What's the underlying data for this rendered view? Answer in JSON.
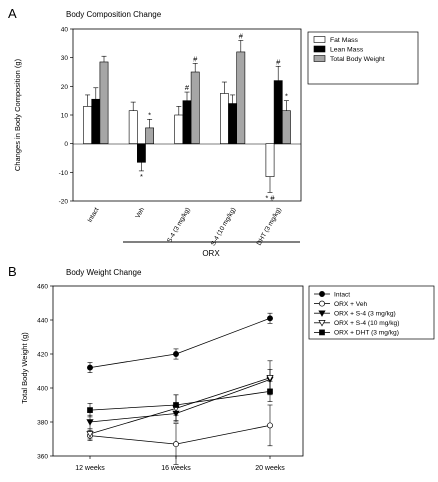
{
  "chart_data": [
    {
      "panel_letter": "A",
      "type": "bar",
      "title": "Body Composition Change",
      "ylabel": "Changes in Body Composition (g)",
      "xlabel": "",
      "ylim": [
        -20,
        40
      ],
      "yticks": [
        -20,
        -10,
        0,
        10,
        20,
        30,
        40
      ],
      "grid": false,
      "legend_position": "top-right",
      "bracket_label": "ORX",
      "categories": [
        "Intact",
        "Veh",
        "S-4 (3 mg/kg)",
        "S-4 (10 mg/kg)",
        "DHT (3 mg/kg)"
      ],
      "series": [
        {
          "name": "Fat Mass",
          "color": "#ffffff",
          "values": [
            13,
            11.5,
            10,
            17.5,
            -11.5
          ],
          "errors": [
            4,
            3,
            3,
            4,
            5.5
          ]
        },
        {
          "name": "Lean Mass",
          "color": "#000000",
          "values": [
            15.5,
            -6.5,
            15,
            14,
            22
          ],
          "errors": [
            4,
            3,
            3,
            3,
            5
          ]
        },
        {
          "name": "Total Body Weight",
          "color": "#a6a6a6",
          "values": [
            28.5,
            5.5,
            25,
            32,
            11.5
          ],
          "errors": [
            2,
            3,
            3,
            4,
            3.5
          ]
        }
      ],
      "annotations": [
        {
          "category": 1,
          "series": 1,
          "text": "*"
        },
        {
          "category": 1,
          "series": 2,
          "text": "*"
        },
        {
          "category": 2,
          "series": 1,
          "text": "#"
        },
        {
          "category": 2,
          "series": 2,
          "text": "#"
        },
        {
          "category": 3,
          "series": 2,
          "text": "#"
        },
        {
          "category": 4,
          "series": 0,
          "text": "* #"
        },
        {
          "category": 4,
          "series": 1,
          "text": "#"
        },
        {
          "category": 4,
          "series": 2,
          "text": "*"
        }
      ]
    },
    {
      "panel_letter": "B",
      "type": "line",
      "title": "Body Weight Change",
      "ylabel": "Total Body Weight (g)",
      "xlabel": "",
      "ylim": [
        360,
        460
      ],
      "yticks": [
        360,
        380,
        400,
        420,
        440,
        460
      ],
      "grid": false,
      "legend_position": "top-right",
      "categories": [
        "12 weeks",
        "16 weeks",
        "20 weeks"
      ],
      "series": [
        {
          "name": "Intact",
          "marker": "circle-filled",
          "values": [
            412,
            420,
            441
          ],
          "errors": [
            3,
            3,
            3
          ]
        },
        {
          "name": "ORX + Veh",
          "marker": "circle-open",
          "values": [
            372,
            367,
            378
          ],
          "errors": [
            3,
            12,
            12
          ]
        },
        {
          "name": "ORX + S-4 (3 mg/kg)",
          "marker": "triangle-down-filled",
          "values": [
            380,
            385,
            405
          ],
          "errors": [
            4,
            4,
            6
          ]
        },
        {
          "name": "ORX + S-4 (10 mg/kg)",
          "marker": "triangle-down-open",
          "values": [
            373,
            388,
            406
          ],
          "errors": [
            3,
            8,
            10
          ]
        },
        {
          "name": "ORX + DHT (3 mg/kg)",
          "marker": "square-filled",
          "values": [
            387,
            390,
            398
          ],
          "errors": [
            4,
            6,
            6
          ]
        }
      ]
    }
  ]
}
